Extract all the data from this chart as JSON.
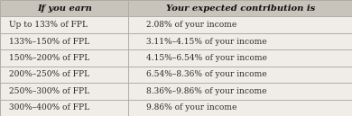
{
  "header": [
    "If you earn",
    "Your expected contribution is"
  ],
  "rows": [
    [
      "Up to 133% of FPL",
      "2.08% of your income"
    ],
    [
      "133%–150% of FPL",
      "3.11%–4.15% of your income"
    ],
    [
      "150%–200% of FPL",
      "4.15%–6.54% of your income"
    ],
    [
      "200%–250% of FPL",
      "6.54%–8.36% of your income"
    ],
    [
      "250%–300% of FPL",
      "8.36%–9.86% of your income"
    ],
    [
      "300%–400% of FPL",
      "9.86% of your income"
    ]
  ],
  "header_bg": "#c8c4bc",
  "row_bg": "#f0ede8",
  "border_color": "#b0aca4",
  "header_text_color": "#111111",
  "row_text_color": "#2a2a2a",
  "col_split": 0.365,
  "figsize": [
    3.9,
    1.29
  ],
  "dpi": 100,
  "header_fontsize": 7.2,
  "row_fontsize": 6.5,
  "fig_bg": "#e8e4de"
}
